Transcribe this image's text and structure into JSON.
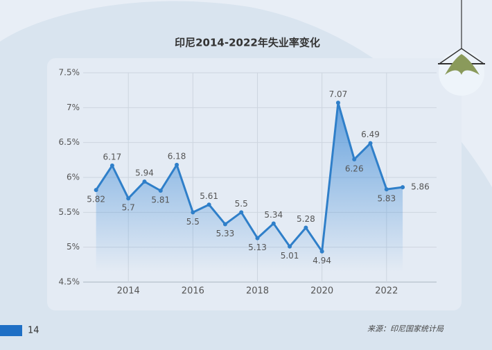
{
  "chart_data": {
    "type": "line",
    "title": "印尼2014-2022年失业率变化",
    "x": [
      2013,
      2013.5,
      2014,
      2014.5,
      2015,
      2015.5,
      2016,
      2016.5,
      2017,
      2017.5,
      2018,
      2018.5,
      2019,
      2019.5,
      2020,
      2020.5,
      2021,
      2021.5,
      2022,
      2022.5
    ],
    "values": [
      5.82,
      6.17,
      5.7,
      5.94,
      5.81,
      6.18,
      5.5,
      5.61,
      5.33,
      5.5,
      5.13,
      5.34,
      5.01,
      5.28,
      4.94,
      7.07,
      6.26,
      6.49,
      5.83,
      5.86
    ],
    "color": "#2f7fc9",
    "xlim": [
      2012.6,
      2023.55
    ],
    "xticks": [
      2014,
      2016,
      2018,
      2020,
      2022
    ],
    "ylim": [
      4.5,
      7.5
    ],
    "yticks": [
      {
        "value": 4.5,
        "label": "4.5%"
      },
      {
        "value": 5,
        "label": "5%"
      },
      {
        "value": 5.5,
        "label": "5.5%"
      },
      {
        "value": 6,
        "label": "6%"
      },
      {
        "value": 6.5,
        "label": "6.5%"
      },
      {
        "value": 7,
        "label": "7%"
      },
      {
        "value": 7.5,
        "label": "7.5%"
      }
    ],
    "grid": true
  },
  "page": {
    "number": "14",
    "source": "来源：印尼国家统计局"
  }
}
